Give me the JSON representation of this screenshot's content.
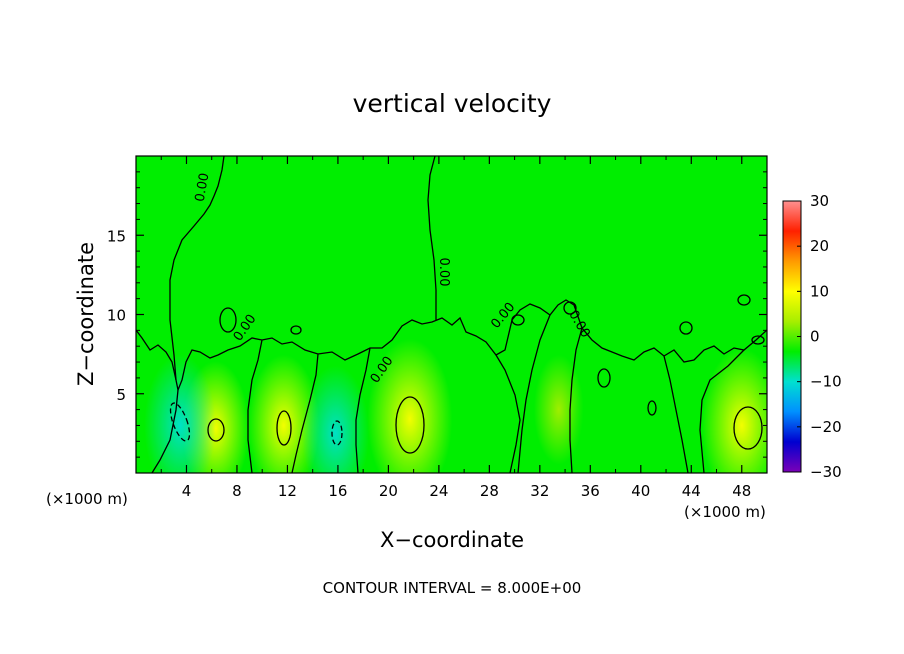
{
  "chart_data": {
    "type": "heatmap",
    "title": "vertical velocity",
    "xlabel": "X−coordinate",
    "ylabel": "Z−coordinate",
    "x_unit_left": "(×1000 m)",
    "x_unit_right": "(×1000 m)",
    "footer": "CONTOUR INTERVAL = 8.000E+00",
    "xlim": [
      0,
      50
    ],
    "ylim": [
      0,
      20
    ],
    "x_ticks": [
      4,
      8,
      12,
      16,
      20,
      24,
      28,
      32,
      36,
      40,
      44,
      48
    ],
    "x_tick_labels": [
      "4",
      "8",
      "12",
      "16",
      "20",
      "24",
      "28",
      "32",
      "36",
      "40",
      "44",
      "48"
    ],
    "y_ticks": [
      5,
      10,
      15
    ],
    "y_tick_labels": [
      "5",
      "10",
      "15"
    ],
    "colorbar": {
      "range": [
        -30,
        30
      ],
      "ticks": [
        30,
        20,
        10,
        0,
        -10,
        -20,
        -30
      ],
      "tick_labels": [
        "30",
        "20",
        "10",
        "0",
        "−10",
        "−20",
        "−30"
      ],
      "colors": [
        "#7a00b8",
        "#0000d0",
        "#0090ff",
        "#00e0d0",
        "#00ee00",
        "#a8ee00",
        "#ffff00",
        "#ff9a00",
        "#ff2000",
        "#ff9090"
      ]
    },
    "contour_labels": [
      "0.00",
      "0.00",
      "0.00",
      "0.00",
      "0.00",
      "0.00"
    ],
    "updrafts": [
      {
        "x": 6.3,
        "z": 2.8,
        "w": 8
      },
      {
        "x": 11.7,
        "z": 3.0,
        "w": 9
      },
      {
        "x": 21.7,
        "z": 3.4,
        "w": 12
      },
      {
        "x": 33.5,
        "z": 4.0,
        "w": 4
      },
      {
        "x": 48.0,
        "z": 3.0,
        "w": 11
      }
    ],
    "downdrafts": [
      {
        "x": 3.5,
        "z": 3.0,
        "w": -9
      },
      {
        "x": 15.8,
        "z": 2.5,
        "w": -8
      },
      {
        "x": 27.5,
        "z": 4.0,
        "w": -6
      },
      {
        "x": 36.5,
        "z": 2.5,
        "w": -5
      }
    ]
  }
}
